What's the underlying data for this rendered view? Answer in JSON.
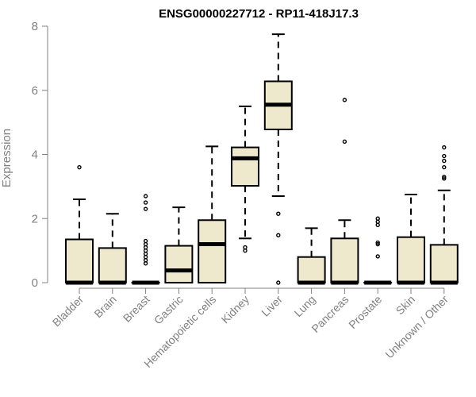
{
  "chart_data": {
    "type": "boxplot",
    "title": "ENSG00000227712 - RP11-418J17.3",
    "ylabel": "Expression",
    "xlabel": "",
    "ylim": [
      0,
      8
    ],
    "yticks": [
      0,
      2,
      4,
      6,
      8
    ],
    "grid": false,
    "colors": {
      "box_fill": "#EEE8CD",
      "stroke": "#000000",
      "axis": "#808080"
    },
    "categories": [
      "Bladder",
      "Brain",
      "Breast",
      "Gastric",
      "Hematopoietic cells",
      "Kidney",
      "Liver",
      "Lung",
      "Pancreas",
      "Prostate",
      "Skin",
      "Unknown / Other"
    ],
    "boxes": [
      {
        "q1": 0,
        "median": 0,
        "q3": 1.35,
        "whisker_low": 0,
        "whisker_high": 2.6,
        "outliers": [
          3.6
        ]
      },
      {
        "q1": 0,
        "median": 0,
        "q3": 1.08,
        "whisker_low": 0,
        "whisker_high": 2.15,
        "outliers": []
      },
      {
        "q1": 0,
        "median": 0,
        "q3": 0,
        "whisker_low": 0,
        "whisker_high": 0,
        "outliers": [
          2.7,
          2.5,
          2.3,
          1.3,
          1.2,
          1.1,
          1.0,
          0.9,
          0.8,
          0.7,
          0.6
        ]
      },
      {
        "q1": 0,
        "median": 0.38,
        "q3": 1.15,
        "whisker_low": 0,
        "whisker_high": 2.35,
        "outliers": []
      },
      {
        "q1": 0,
        "median": 1.2,
        "q3": 1.95,
        "whisker_low": 0,
        "whisker_high": 4.25,
        "outliers": []
      },
      {
        "q1": 3.02,
        "median": 3.88,
        "q3": 4.22,
        "whisker_low": 1.38,
        "whisker_high": 5.5,
        "outliers": [
          1.1,
          1.0
        ]
      },
      {
        "q1": 4.78,
        "median": 5.55,
        "q3": 6.28,
        "whisker_low": 2.7,
        "whisker_high": 7.75,
        "outliers": [
          2.15,
          1.48,
          0
        ]
      },
      {
        "q1": 0,
        "median": 0,
        "q3": 0.8,
        "whisker_low": 0,
        "whisker_high": 1.7,
        "outliers": []
      },
      {
        "q1": 0,
        "median": 0,
        "q3": 1.38,
        "whisker_low": 0,
        "whisker_high": 1.95,
        "outliers": [
          5.7,
          4.4
        ]
      },
      {
        "q1": 0,
        "median": 0,
        "q3": 0,
        "whisker_low": 0,
        "whisker_high": 0,
        "outliers": [
          2.0,
          1.9,
          1.8,
          1.25,
          1.2,
          0.82
        ]
      },
      {
        "q1": 0,
        "median": 0,
        "q3": 1.42,
        "whisker_low": 0,
        "whisker_high": 2.75,
        "outliers": []
      },
      {
        "q1": 0,
        "median": 0,
        "q3": 1.18,
        "whisker_low": 0,
        "whisker_high": 2.88,
        "outliers": [
          4.22,
          3.95,
          3.8,
          3.6,
          3.3,
          3.25
        ]
      }
    ]
  }
}
